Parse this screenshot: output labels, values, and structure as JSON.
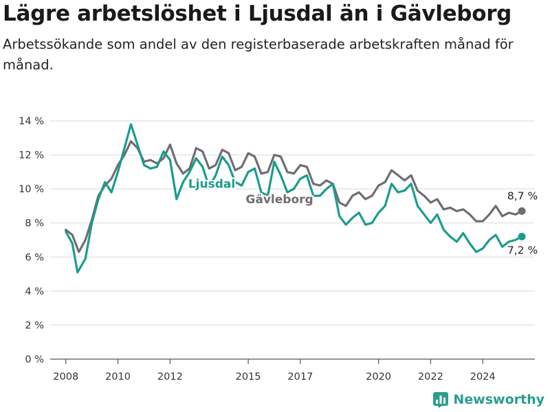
{
  "title": "Lägre arbetslöshet i Ljusdal än i Gävleborg",
  "subtitle": "Arbetssökande som andel av den registerbaserade arbetskraften månad för månad.",
  "brand": {
    "name": "Newsworthy",
    "icon": "bar-chart-logo-icon",
    "color": "#2a9d8f"
  },
  "chart_data": {
    "type": "line",
    "title": "Lägre arbetslöshet i Ljusdal än i Gävleborg",
    "xlabel": "",
    "ylabel": "",
    "xlim": [
      2007.4,
      2026.0
    ],
    "ylim": [
      0,
      14
    ],
    "grid": "horizontal",
    "y_ticks": [
      {
        "value": 0,
        "label": "0 %"
      },
      {
        "value": 2,
        "label": "2 %"
      },
      {
        "value": 4,
        "label": "4 %"
      },
      {
        "value": 6,
        "label": "6 %"
      },
      {
        "value": 8,
        "label": "8 %"
      },
      {
        "value": 10,
        "label": "10 %"
      },
      {
        "value": 12,
        "label": "12 %"
      },
      {
        "value": 14,
        "label": "14 %"
      }
    ],
    "x_ticks": [
      {
        "value": 2008,
        "label": "2008"
      },
      {
        "value": 2010,
        "label": "2010"
      },
      {
        "value": 2012,
        "label": "2012"
      },
      {
        "value": 2015,
        "label": "2015"
      },
      {
        "value": 2017,
        "label": "2017"
      },
      {
        "value": 2020,
        "label": "2020"
      },
      {
        "value": 2022,
        "label": "2022"
      },
      {
        "value": 2024,
        "label": "2024"
      }
    ],
    "series": [
      {
        "name": "Gävleborg",
        "color": "#706c72",
        "label": {
          "x": 2016.2,
          "y": 9.4
        },
        "end_label": "8,7 %",
        "points": [
          [
            2008.0,
            7.6
          ],
          [
            2008.25,
            7.3
          ],
          [
            2008.5,
            6.3
          ],
          [
            2008.75,
            7.0
          ],
          [
            2009.0,
            8.2
          ],
          [
            2009.25,
            9.6
          ],
          [
            2009.5,
            10.2
          ],
          [
            2009.75,
            10.6
          ],
          [
            2010.0,
            11.4
          ],
          [
            2010.25,
            12.0
          ],
          [
            2010.5,
            12.8
          ],
          [
            2010.75,
            12.4
          ],
          [
            2011.0,
            11.6
          ],
          [
            2011.25,
            11.7
          ],
          [
            2011.5,
            11.5
          ],
          [
            2011.75,
            11.8
          ],
          [
            2012.0,
            12.6
          ],
          [
            2012.25,
            11.5
          ],
          [
            2012.5,
            10.9
          ],
          [
            2012.75,
            11.2
          ],
          [
            2013.0,
            12.4
          ],
          [
            2013.25,
            12.2
          ],
          [
            2013.5,
            11.2
          ],
          [
            2013.75,
            11.4
          ],
          [
            2014.0,
            12.3
          ],
          [
            2014.25,
            12.1
          ],
          [
            2014.5,
            11.1
          ],
          [
            2014.75,
            11.3
          ],
          [
            2015.0,
            12.1
          ],
          [
            2015.25,
            11.9
          ],
          [
            2015.5,
            10.9
          ],
          [
            2015.75,
            11.0
          ],
          [
            2016.0,
            12.0
          ],
          [
            2016.25,
            11.9
          ],
          [
            2016.5,
            11.0
          ],
          [
            2016.75,
            10.9
          ],
          [
            2017.0,
            11.4
          ],
          [
            2017.25,
            11.3
          ],
          [
            2017.5,
            10.3
          ],
          [
            2017.75,
            10.2
          ],
          [
            2018.0,
            10.5
          ],
          [
            2018.25,
            10.3
          ],
          [
            2018.5,
            9.2
          ],
          [
            2018.75,
            9.0
          ],
          [
            2019.0,
            9.6
          ],
          [
            2019.25,
            9.8
          ],
          [
            2019.5,
            9.4
          ],
          [
            2019.75,
            9.6
          ],
          [
            2020.0,
            10.2
          ],
          [
            2020.25,
            10.4
          ],
          [
            2020.5,
            11.1
          ],
          [
            2020.75,
            10.8
          ],
          [
            2021.0,
            10.5
          ],
          [
            2021.25,
            10.8
          ],
          [
            2021.5,
            9.9
          ],
          [
            2021.75,
            9.6
          ],
          [
            2022.0,
            9.2
          ],
          [
            2022.25,
            9.4
          ],
          [
            2022.5,
            8.8
          ],
          [
            2022.75,
            8.9
          ],
          [
            2023.0,
            8.7
          ],
          [
            2023.25,
            8.8
          ],
          [
            2023.5,
            8.5
          ],
          [
            2023.75,
            8.1
          ],
          [
            2024.0,
            8.1
          ],
          [
            2024.25,
            8.5
          ],
          [
            2024.5,
            9.0
          ],
          [
            2024.75,
            8.4
          ],
          [
            2025.0,
            8.6
          ],
          [
            2025.25,
            8.5
          ],
          [
            2025.5,
            8.7
          ]
        ]
      },
      {
        "name": "Ljusdal",
        "color": "#1a9c8c",
        "label": {
          "x": 2013.6,
          "y": 10.3
        },
        "end_label": "7,2 %",
        "points": [
          [
            2008.0,
            7.5
          ],
          [
            2008.25,
            6.8
          ],
          [
            2008.45,
            5.1
          ],
          [
            2008.75,
            5.9
          ],
          [
            2009.0,
            8.0
          ],
          [
            2009.25,
            9.4
          ],
          [
            2009.5,
            10.4
          ],
          [
            2009.75,
            9.8
          ],
          [
            2010.0,
            11.0
          ],
          [
            2010.25,
            12.4
          ],
          [
            2010.5,
            13.8
          ],
          [
            2010.75,
            12.6
          ],
          [
            2011.0,
            11.4
          ],
          [
            2011.25,
            11.2
          ],
          [
            2011.5,
            11.3
          ],
          [
            2011.75,
            12.2
          ],
          [
            2012.0,
            11.7
          ],
          [
            2012.25,
            9.4
          ],
          [
            2012.5,
            10.4
          ],
          [
            2012.75,
            11.0
          ],
          [
            2013.0,
            11.8
          ],
          [
            2013.25,
            11.3
          ],
          [
            2013.5,
            10.1
          ],
          [
            2013.75,
            10.8
          ],
          [
            2014.0,
            11.9
          ],
          [
            2014.25,
            11.4
          ],
          [
            2014.5,
            10.4
          ],
          [
            2014.75,
            10.2
          ],
          [
            2015.0,
            11.0
          ],
          [
            2015.25,
            11.2
          ],
          [
            2015.5,
            9.8
          ],
          [
            2015.75,
            9.6
          ],
          [
            2016.0,
            11.6
          ],
          [
            2016.25,
            10.8
          ],
          [
            2016.5,
            9.8
          ],
          [
            2016.75,
            10.0
          ],
          [
            2017.0,
            10.6
          ],
          [
            2017.25,
            10.8
          ],
          [
            2017.5,
            9.6
          ],
          [
            2017.75,
            9.6
          ],
          [
            2018.0,
            10.0
          ],
          [
            2018.25,
            10.3
          ],
          [
            2018.5,
            8.4
          ],
          [
            2018.75,
            7.9
          ],
          [
            2019.0,
            8.3
          ],
          [
            2019.25,
            8.6
          ],
          [
            2019.5,
            7.9
          ],
          [
            2019.75,
            8.0
          ],
          [
            2020.0,
            8.6
          ],
          [
            2020.25,
            9.0
          ],
          [
            2020.5,
            10.3
          ],
          [
            2020.75,
            9.8
          ],
          [
            2021.0,
            9.9
          ],
          [
            2021.25,
            10.3
          ],
          [
            2021.5,
            9.0
          ],
          [
            2021.75,
            8.5
          ],
          [
            2022.0,
            8.0
          ],
          [
            2022.25,
            8.5
          ],
          [
            2022.5,
            7.6
          ],
          [
            2022.75,
            7.2
          ],
          [
            2023.0,
            6.9
          ],
          [
            2023.25,
            7.4
          ],
          [
            2023.5,
            6.8
          ],
          [
            2023.75,
            6.3
          ],
          [
            2024.0,
            6.5
          ],
          [
            2024.25,
            7.0
          ],
          [
            2024.5,
            7.3
          ],
          [
            2024.75,
            6.6
          ],
          [
            2025.0,
            6.9
          ],
          [
            2025.25,
            7.0
          ],
          [
            2025.5,
            7.2
          ]
        ]
      }
    ]
  }
}
